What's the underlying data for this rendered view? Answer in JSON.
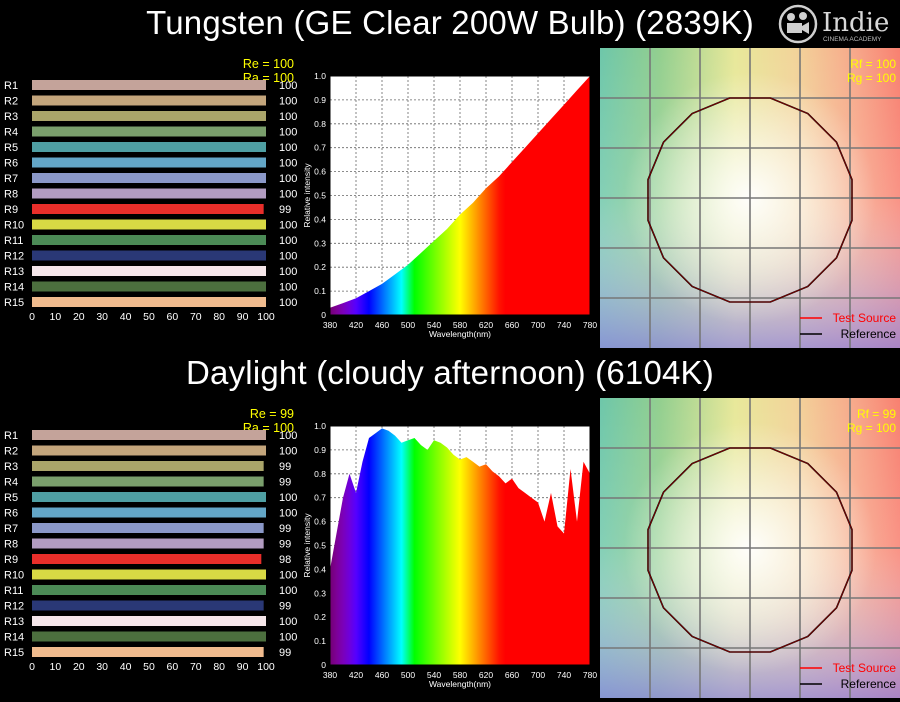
{
  "titles": {
    "top": "Tungsten (GE Clear 200W Bulb) (2839K)",
    "bottom": "Daylight (cloudy afternoon) (6104K)"
  },
  "logo": {
    "name": "Indie",
    "sub": "CINEMA ACADEMY",
    "icon": "film-camera-icon"
  },
  "colors": {
    "title_text": "#ffffff",
    "index_text": "#ffff00",
    "legend_test": "#ff0000",
    "legend_ref": "#000000",
    "sample_colors": [
      "#c4a39a",
      "#c3a57c",
      "#aaa56a",
      "#7a9f6c",
      "#4f9fa3",
      "#63a6c7",
      "#8b98c8",
      "#b29cc1",
      "#e82e2a",
      "#d8d944",
      "#4b8b56",
      "#2a3876",
      "#f5e6ea",
      "#4c6f3e",
      "#f0bb8e"
    ]
  },
  "charts": [
    {
      "cri": {
        "type": "bar",
        "index_labels": [
          "Re = 100",
          "Ra = 100"
        ],
        "categories": [
          "R1",
          "R2",
          "R3",
          "R4",
          "R5",
          "R6",
          "R7",
          "R8",
          "R9",
          "R10",
          "R11",
          "R12",
          "R13",
          "R14",
          "R15"
        ],
        "values": [
          100,
          100,
          100,
          100,
          100,
          100,
          100,
          100,
          99,
          100,
          100,
          100,
          100,
          100,
          100
        ],
        "xticks": [
          "0",
          "10",
          "20",
          "30",
          "40",
          "50",
          "60",
          "70",
          "80",
          "90",
          "100"
        ],
        "xlim": [
          0,
          100
        ]
      },
      "spd": {
        "type": "area",
        "xlabel": "Wavelength(nm)",
        "ylabel": "Relative intensity",
        "xticks": [
          "380",
          "420",
          "460",
          "500",
          "540",
          "580",
          "620",
          "660",
          "700",
          "740",
          "780"
        ],
        "yticks": [
          "0",
          "0.1",
          "0.2",
          "0.3",
          "0.4",
          "0.5",
          "0.6",
          "0.7",
          "0.8",
          "0.9",
          "1.0"
        ],
        "xlim": [
          380,
          780
        ],
        "ylim": [
          0,
          1
        ],
        "x": [
          380,
          400,
          420,
          440,
          460,
          480,
          500,
          520,
          540,
          560,
          580,
          600,
          620,
          640,
          660,
          680,
          700,
          720,
          740,
          760,
          780
        ],
        "y": [
          0.03,
          0.05,
          0.07,
          0.1,
          0.13,
          0.17,
          0.21,
          0.26,
          0.31,
          0.36,
          0.42,
          0.47,
          0.53,
          0.58,
          0.64,
          0.7,
          0.76,
          0.82,
          0.88,
          0.94,
          1.0
        ]
      },
      "gamut": {
        "type": "line",
        "index_labels": [
          "Rf = 100",
          "Rg = 100"
        ],
        "legend": [
          "Test Source",
          "Reference"
        ],
        "legend_placement": "bottom-right",
        "grid": true
      }
    },
    {
      "cri": {
        "type": "bar",
        "index_labels": [
          "Re = 99",
          "Ra = 100"
        ],
        "categories": [
          "R1",
          "R2",
          "R3",
          "R4",
          "R5",
          "R6",
          "R7",
          "R8",
          "R9",
          "R10",
          "R11",
          "R12",
          "R13",
          "R14",
          "R15"
        ],
        "values": [
          100,
          100,
          99,
          99,
          100,
          100,
          99,
          99,
          98,
          100,
          100,
          99,
          100,
          100,
          99
        ],
        "xticks": [
          "0",
          "10",
          "20",
          "30",
          "40",
          "50",
          "60",
          "70",
          "80",
          "90",
          "100"
        ],
        "xlim": [
          0,
          100
        ]
      },
      "spd": {
        "type": "area",
        "xlabel": "Wavelength(nm)",
        "ylabel": "Relative intensity",
        "xticks": [
          "380",
          "420",
          "460",
          "500",
          "540",
          "580",
          "620",
          "660",
          "700",
          "740",
          "780"
        ],
        "yticks": [
          "0",
          "0.1",
          "0.2",
          "0.3",
          "0.4",
          "0.5",
          "0.6",
          "0.7",
          "0.8",
          "0.9",
          "1.0"
        ],
        "xlim": [
          380,
          780
        ],
        "ylim": [
          0,
          1
        ],
        "x": [
          380,
          390,
          400,
          410,
          420,
          430,
          440,
          450,
          460,
          470,
          480,
          490,
          500,
          510,
          520,
          530,
          540,
          550,
          560,
          570,
          580,
          590,
          600,
          610,
          620,
          630,
          640,
          650,
          660,
          670,
          680,
          690,
          700,
          710,
          720,
          730,
          740,
          750,
          760,
          770,
          780
        ],
        "y": [
          0.4,
          0.55,
          0.7,
          0.8,
          0.72,
          0.85,
          0.95,
          0.97,
          0.99,
          0.98,
          0.96,
          0.93,
          0.94,
          0.95,
          0.92,
          0.9,
          0.94,
          0.93,
          0.91,
          0.88,
          0.86,
          0.87,
          0.85,
          0.83,
          0.84,
          0.81,
          0.79,
          0.76,
          0.78,
          0.74,
          0.72,
          0.7,
          0.68,
          0.6,
          0.72,
          0.58,
          0.55,
          0.82,
          0.6,
          0.85,
          0.8
        ]
      },
      "gamut": {
        "type": "line",
        "index_labels": [
          "Rf = 99",
          "Rg = 100"
        ],
        "legend": [
          "Test Source",
          "Reference"
        ],
        "legend_placement": "bottom-right",
        "grid": true
      }
    }
  ]
}
